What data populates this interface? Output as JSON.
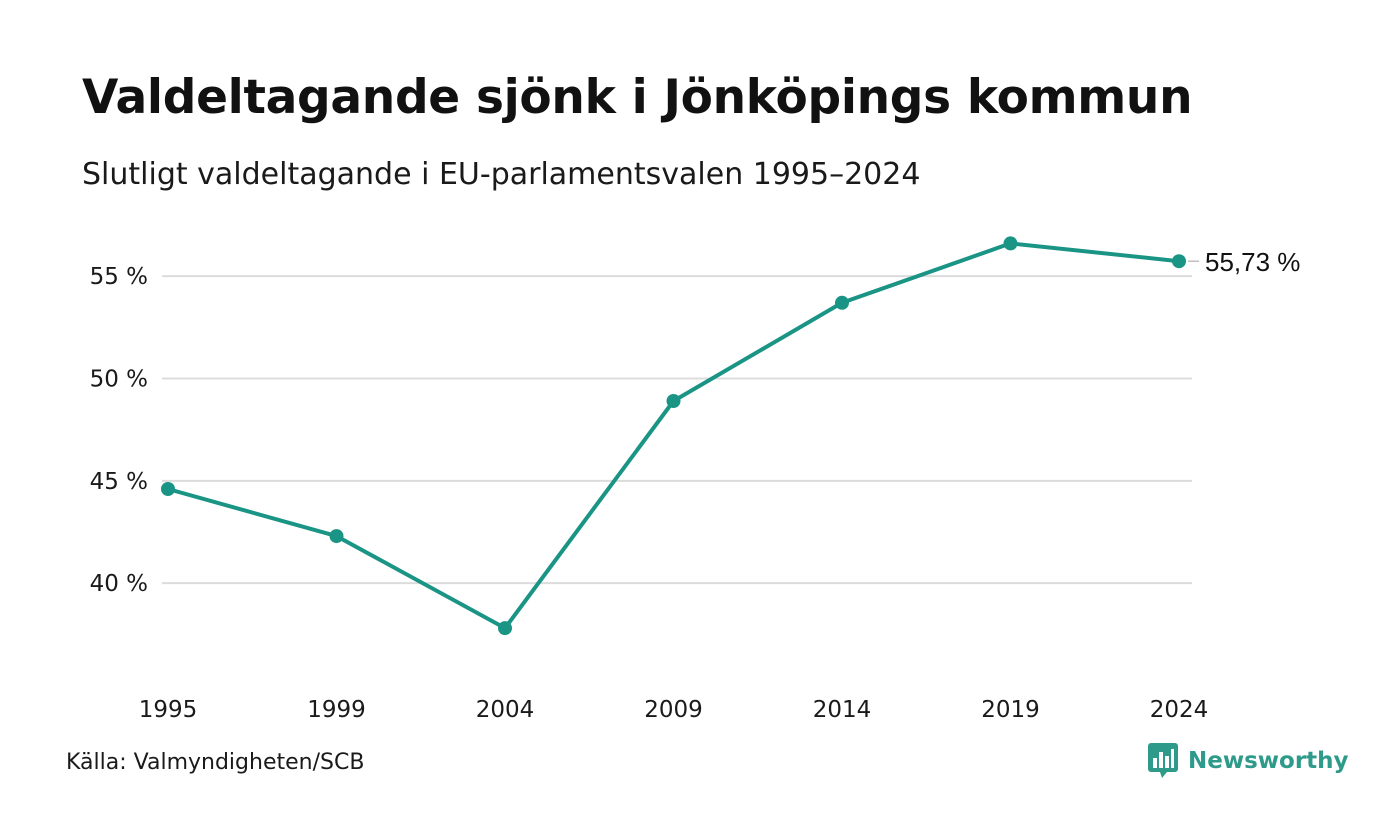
{
  "title": "Valdeltagande sjönk i Jönköpings kommun",
  "subtitle": "Slutligt valdeltagande i EU-parlamentsvalen 1995–2024",
  "source": "Källa: Valmyndigheten/SCB",
  "brand": {
    "name": "Newsworthy",
    "icon": "bar-chart-pin-icon",
    "color": "#2e9a8a"
  },
  "chart_data": {
    "type": "line",
    "x": [
      "1995",
      "1999",
      "2004",
      "2009",
      "2014",
      "2019",
      "2024"
    ],
    "series": [
      {
        "values": [
          44.6,
          42.3,
          37.8,
          48.9,
          53.7,
          56.6,
          55.73
        ],
        "color": "#1a9484"
      }
    ],
    "yticks": [
      40,
      45,
      50,
      55
    ],
    "ytick_labels": [
      "40 %",
      "45 %",
      "50 %",
      "55 %"
    ],
    "ylim": [
      36,
      57.5
    ],
    "grid": true,
    "end_label": "55,73 %"
  }
}
